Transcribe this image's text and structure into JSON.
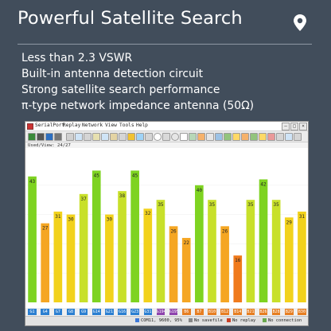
{
  "headline": "Powerful Satellite Search",
  "features": [
    "Less than 2.3 VSWR",
    "Built-in antenna detection circuit",
    "Strong satellite search performance",
    "π-type network impedance antenna (50Ω)"
  ],
  "app": {
    "menu": [
      "SerialPort",
      "Replay",
      "Network",
      "View",
      "Tools",
      "Help"
    ],
    "stats_label": "Used/View: 24/27",
    "status": {
      "port": "COM11, 9600, 95%",
      "savefile": "No savefile",
      "replay": "No replay",
      "connection": "No connection"
    }
  },
  "chart_data": {
    "type": "bar",
    "title": "",
    "xlabel": "",
    "ylabel": "",
    "ylim": [
      0,
      50
    ],
    "categories": [
      "G1",
      "G4",
      "G7",
      "G8",
      "G9",
      "G14",
      "G21",
      "G16",
      "G23",
      "G31",
      "G194",
      "G195",
      "B6",
      "B7",
      "B10",
      "B12",
      "B14",
      "B21",
      "B26",
      "B28",
      "B29",
      "B30"
    ],
    "values": [
      43,
      27,
      31,
      30,
      37,
      45,
      30,
      38,
      45,
      32,
      35,
      26,
      22,
      40,
      35,
      26,
      16,
      35,
      42,
      35,
      29,
      31
    ],
    "colors": {
      "strong": "#7ed321",
      "mid": "#c8e02a",
      "yellow": "#f2d21b",
      "orange": "#f5a623",
      "deep": "#f07a1c",
      "gps_label": "#2b7fd1",
      "glonass_label": "#8e44ad",
      "beidou_label": "#e67e22"
    }
  }
}
